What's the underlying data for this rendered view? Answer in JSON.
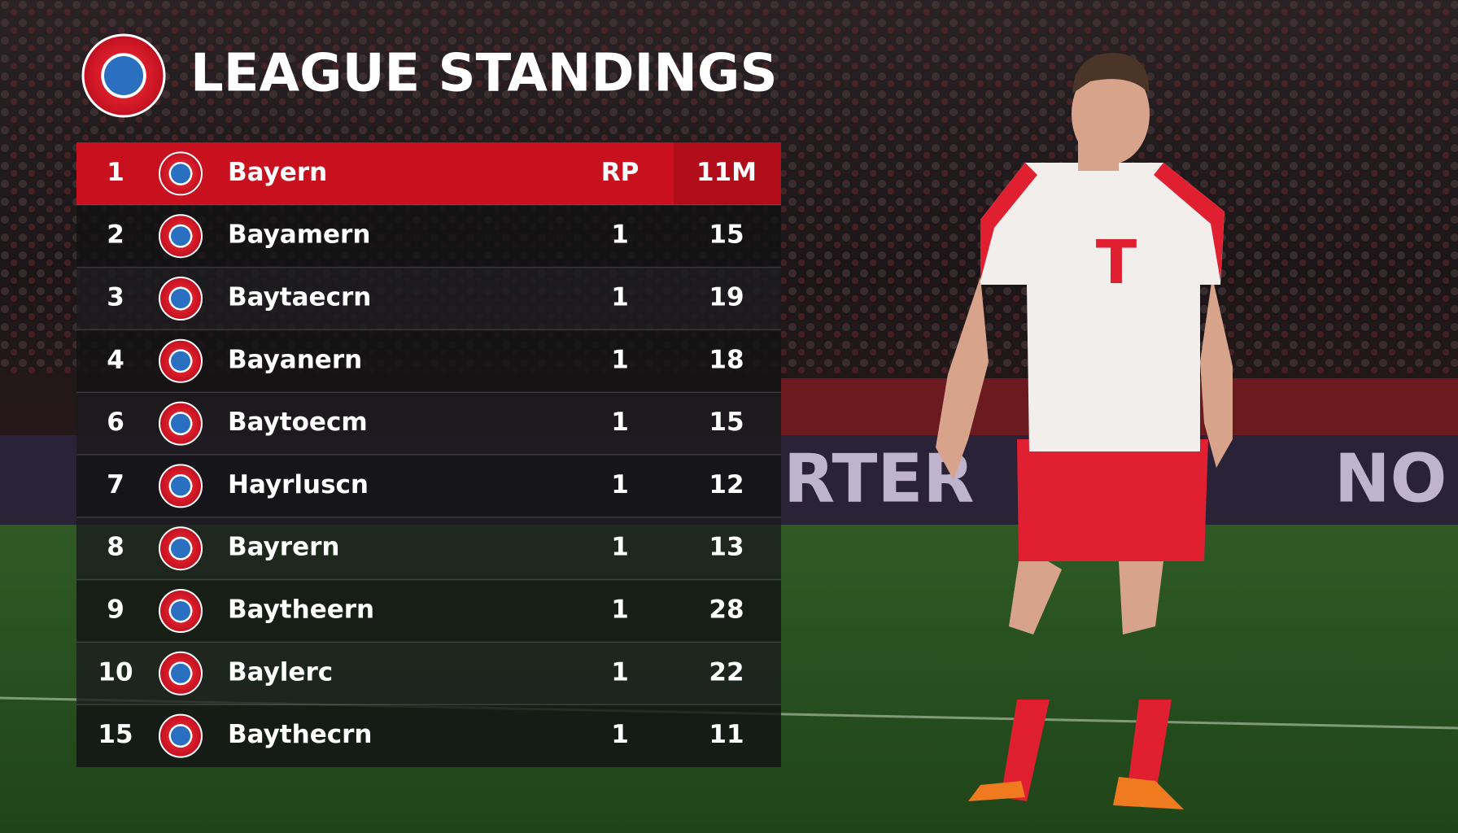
{
  "header": {
    "title": "LEAGUE STANDINGS"
  },
  "table": {
    "rows": [
      [
        "1",
        "Bayern",
        "RP",
        "11M"
      ],
      [
        "2",
        "Bayamern",
        "1",
        "15"
      ],
      [
        "3",
        "Baytaecrn",
        "1",
        "19"
      ],
      [
        "4",
        "Bayanern",
        "1",
        "18"
      ],
      [
        "6",
        "Baytoecm",
        "1",
        "15"
      ],
      [
        "7",
        "Hayrluscn",
        "1",
        "12"
      ],
      [
        "8",
        "Bayrern",
        "1",
        "13"
      ],
      [
        "9",
        "Baytheern",
        "1",
        "28"
      ],
      [
        "10",
        "Baylerc",
        "1",
        "22"
      ],
      [
        "15",
        "Baythecrn",
        "1",
        "11"
      ]
    ]
  },
  "ad_board": [
    "RTER",
    "NO"
  ]
}
